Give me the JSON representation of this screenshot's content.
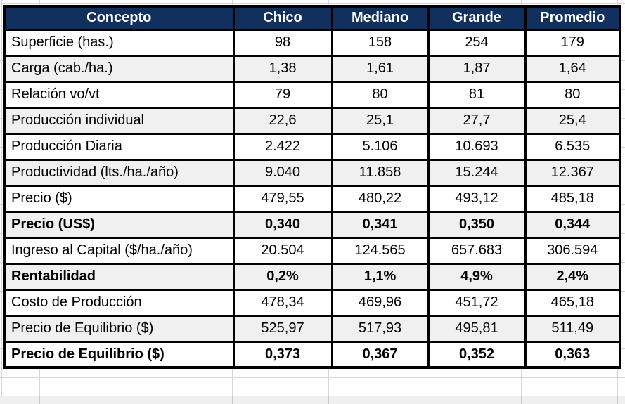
{
  "chart_data": {
    "type": "table",
    "columns": [
      "Concepto",
      "Chico",
      "Mediano",
      "Grande",
      "Promedio"
    ],
    "rows": [
      {
        "label": "Superficie (has.)",
        "values": [
          "98",
          "158",
          "254",
          "179"
        ],
        "bold": false
      },
      {
        "label": "Carga (cab./ha.)",
        "values": [
          "1,38",
          "1,61",
          "1,87",
          "1,64"
        ],
        "bold": false
      },
      {
        "label": "Relación vo/vt",
        "values": [
          "79",
          "80",
          "81",
          "80"
        ],
        "bold": false
      },
      {
        "label": "Producción individual",
        "values": [
          "22,6",
          "25,1",
          "27,7",
          "25,4"
        ],
        "bold": false
      },
      {
        "label": "Producción Diaria",
        "values": [
          "2.422",
          "5.106",
          "10.693",
          "6.535"
        ],
        "bold": false
      },
      {
        "label": "Productividad (lts./ha./año)",
        "values": [
          "9.040",
          "11.858",
          "15.244",
          "12.367"
        ],
        "bold": false
      },
      {
        "label": "Precio ($)",
        "values": [
          "479,55",
          "480,22",
          "493,12",
          "485,18"
        ],
        "bold": false
      },
      {
        "label": "Precio (US$)",
        "values": [
          "0,340",
          "0,341",
          "0,350",
          "0,344"
        ],
        "bold": true
      },
      {
        "label": "Ingreso al Capital ($/ha./año)",
        "values": [
          "20.504",
          "124.565",
          "657.683",
          "306.594"
        ],
        "bold": false
      },
      {
        "label": "Rentabilidad",
        "values": [
          "0,2%",
          "1,1%",
          "4,9%",
          "2,4%"
        ],
        "bold": true
      },
      {
        "label": "Costo de Producción",
        "values": [
          "478,34",
          "469,96",
          "451,72",
          "465,18"
        ],
        "bold": false
      },
      {
        "label": "Precio de Equilibrio ($)",
        "values": [
          "525,97",
          "517,93",
          "495,81",
          "511,49"
        ],
        "bold": false
      },
      {
        "label": "Precio de Equilibrio ($)",
        "values": [
          "0,373",
          "0,367",
          "0,352",
          "0,363"
        ],
        "bold": true
      }
    ],
    "title": "",
    "layout": {
      "header_position": "top",
      "alternating_rows": true
    }
  },
  "colors": {
    "header_bg": "#12305e",
    "header_text": "#ffffff",
    "row_alt_bg": "#f0f0f0",
    "border": "#000000",
    "gridline": "#d6d6d6"
  }
}
